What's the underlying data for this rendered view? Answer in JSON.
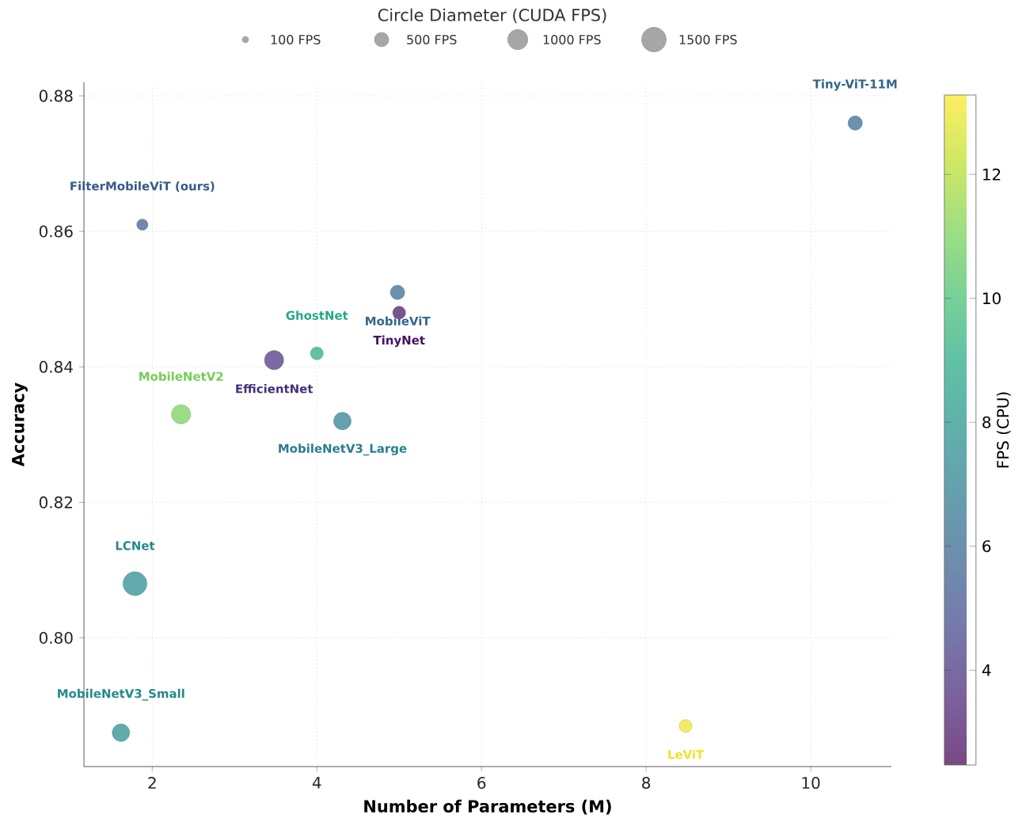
{
  "chart_data": {
    "type": "bubble",
    "xlabel": "Number of Parameters (M)",
    "ylabel": "Accuracy",
    "clabel": "FPS (CPU)",
    "legend_title": "Circle Diameter (CUDA FPS)",
    "x": [
      1.88,
      10.54,
      4.98,
      5.0,
      4.0,
      3.48,
      2.35,
      4.31,
      1.79,
      1.62,
      8.48
    ],
    "values": [
      0.861,
      0.876,
      0.851,
      0.848,
      0.842,
      0.841,
      0.833,
      0.832,
      0.808,
      0.786,
      0.787
    ],
    "cvalues": [
      5.5,
      6,
      6,
      3,
      9,
      4,
      11,
      7,
      7.5,
      7.5,
      13
    ],
    "sizes": [
      300,
      500,
      500,
      400,
      400,
      900,
      900,
      750,
      1400,
      750,
      400
    ],
    "size_legend": [
      {
        "value": 100,
        "label": "100 FPS"
      },
      {
        "value": 500,
        "label": "500 FPS"
      },
      {
        "value": 1000,
        "label": "1000 FPS"
      },
      {
        "value": 1500,
        "label": "1500 FPS"
      }
    ],
    "annotations": [
      {
        "text": "FilterMobileViT (ours)",
        "x": 1.88,
        "y": 0.861
      },
      {
        "text": "Tiny-ViT-11M",
        "x": 10.54,
        "y": 0.876
      },
      {
        "text": "MobileViT",
        "x": 4.98,
        "y": 0.851
      },
      {
        "text": "TinyNet",
        "x": 5.0,
        "y": 0.848
      },
      {
        "text": "GhostNet",
        "x": 4.0,
        "y": 0.842
      },
      {
        "text": "EfficientNet",
        "x": 3.48,
        "y": 0.841
      },
      {
        "text": "MobileNetV2",
        "x": 2.35,
        "y": 0.833
      },
      {
        "text": "MobileNetV3_Large",
        "x": 4.31,
        "y": 0.832
      },
      {
        "text": "LCNet",
        "x": 1.79,
        "y": 0.808
      },
      {
        "text": "MobileNetV3_Small",
        "x": 1.62,
        "y": 0.786
      },
      {
        "text": "LeViT",
        "x": 8.48,
        "y": 0.787
      }
    ],
    "xlim": [
      1.17,
      10.98
    ],
    "ylim": [
      0.781,
      0.882
    ],
    "xticks": [
      2,
      4,
      6,
      8,
      10
    ],
    "yticks": [
      {
        "value": 0.8,
        "label": "0.80"
      },
      {
        "value": 0.82,
        "label": "0.82"
      },
      {
        "value": 0.84,
        "label": "0.84"
      },
      {
        "value": 0.86,
        "label": "0.86"
      },
      {
        "value": 0.88,
        "label": "0.88"
      }
    ],
    "clim": [
      2.47,
      13.28
    ],
    "cticks": [
      4,
      6,
      8,
      10,
      12
    ],
    "grid": true,
    "marker": "circle"
  }
}
